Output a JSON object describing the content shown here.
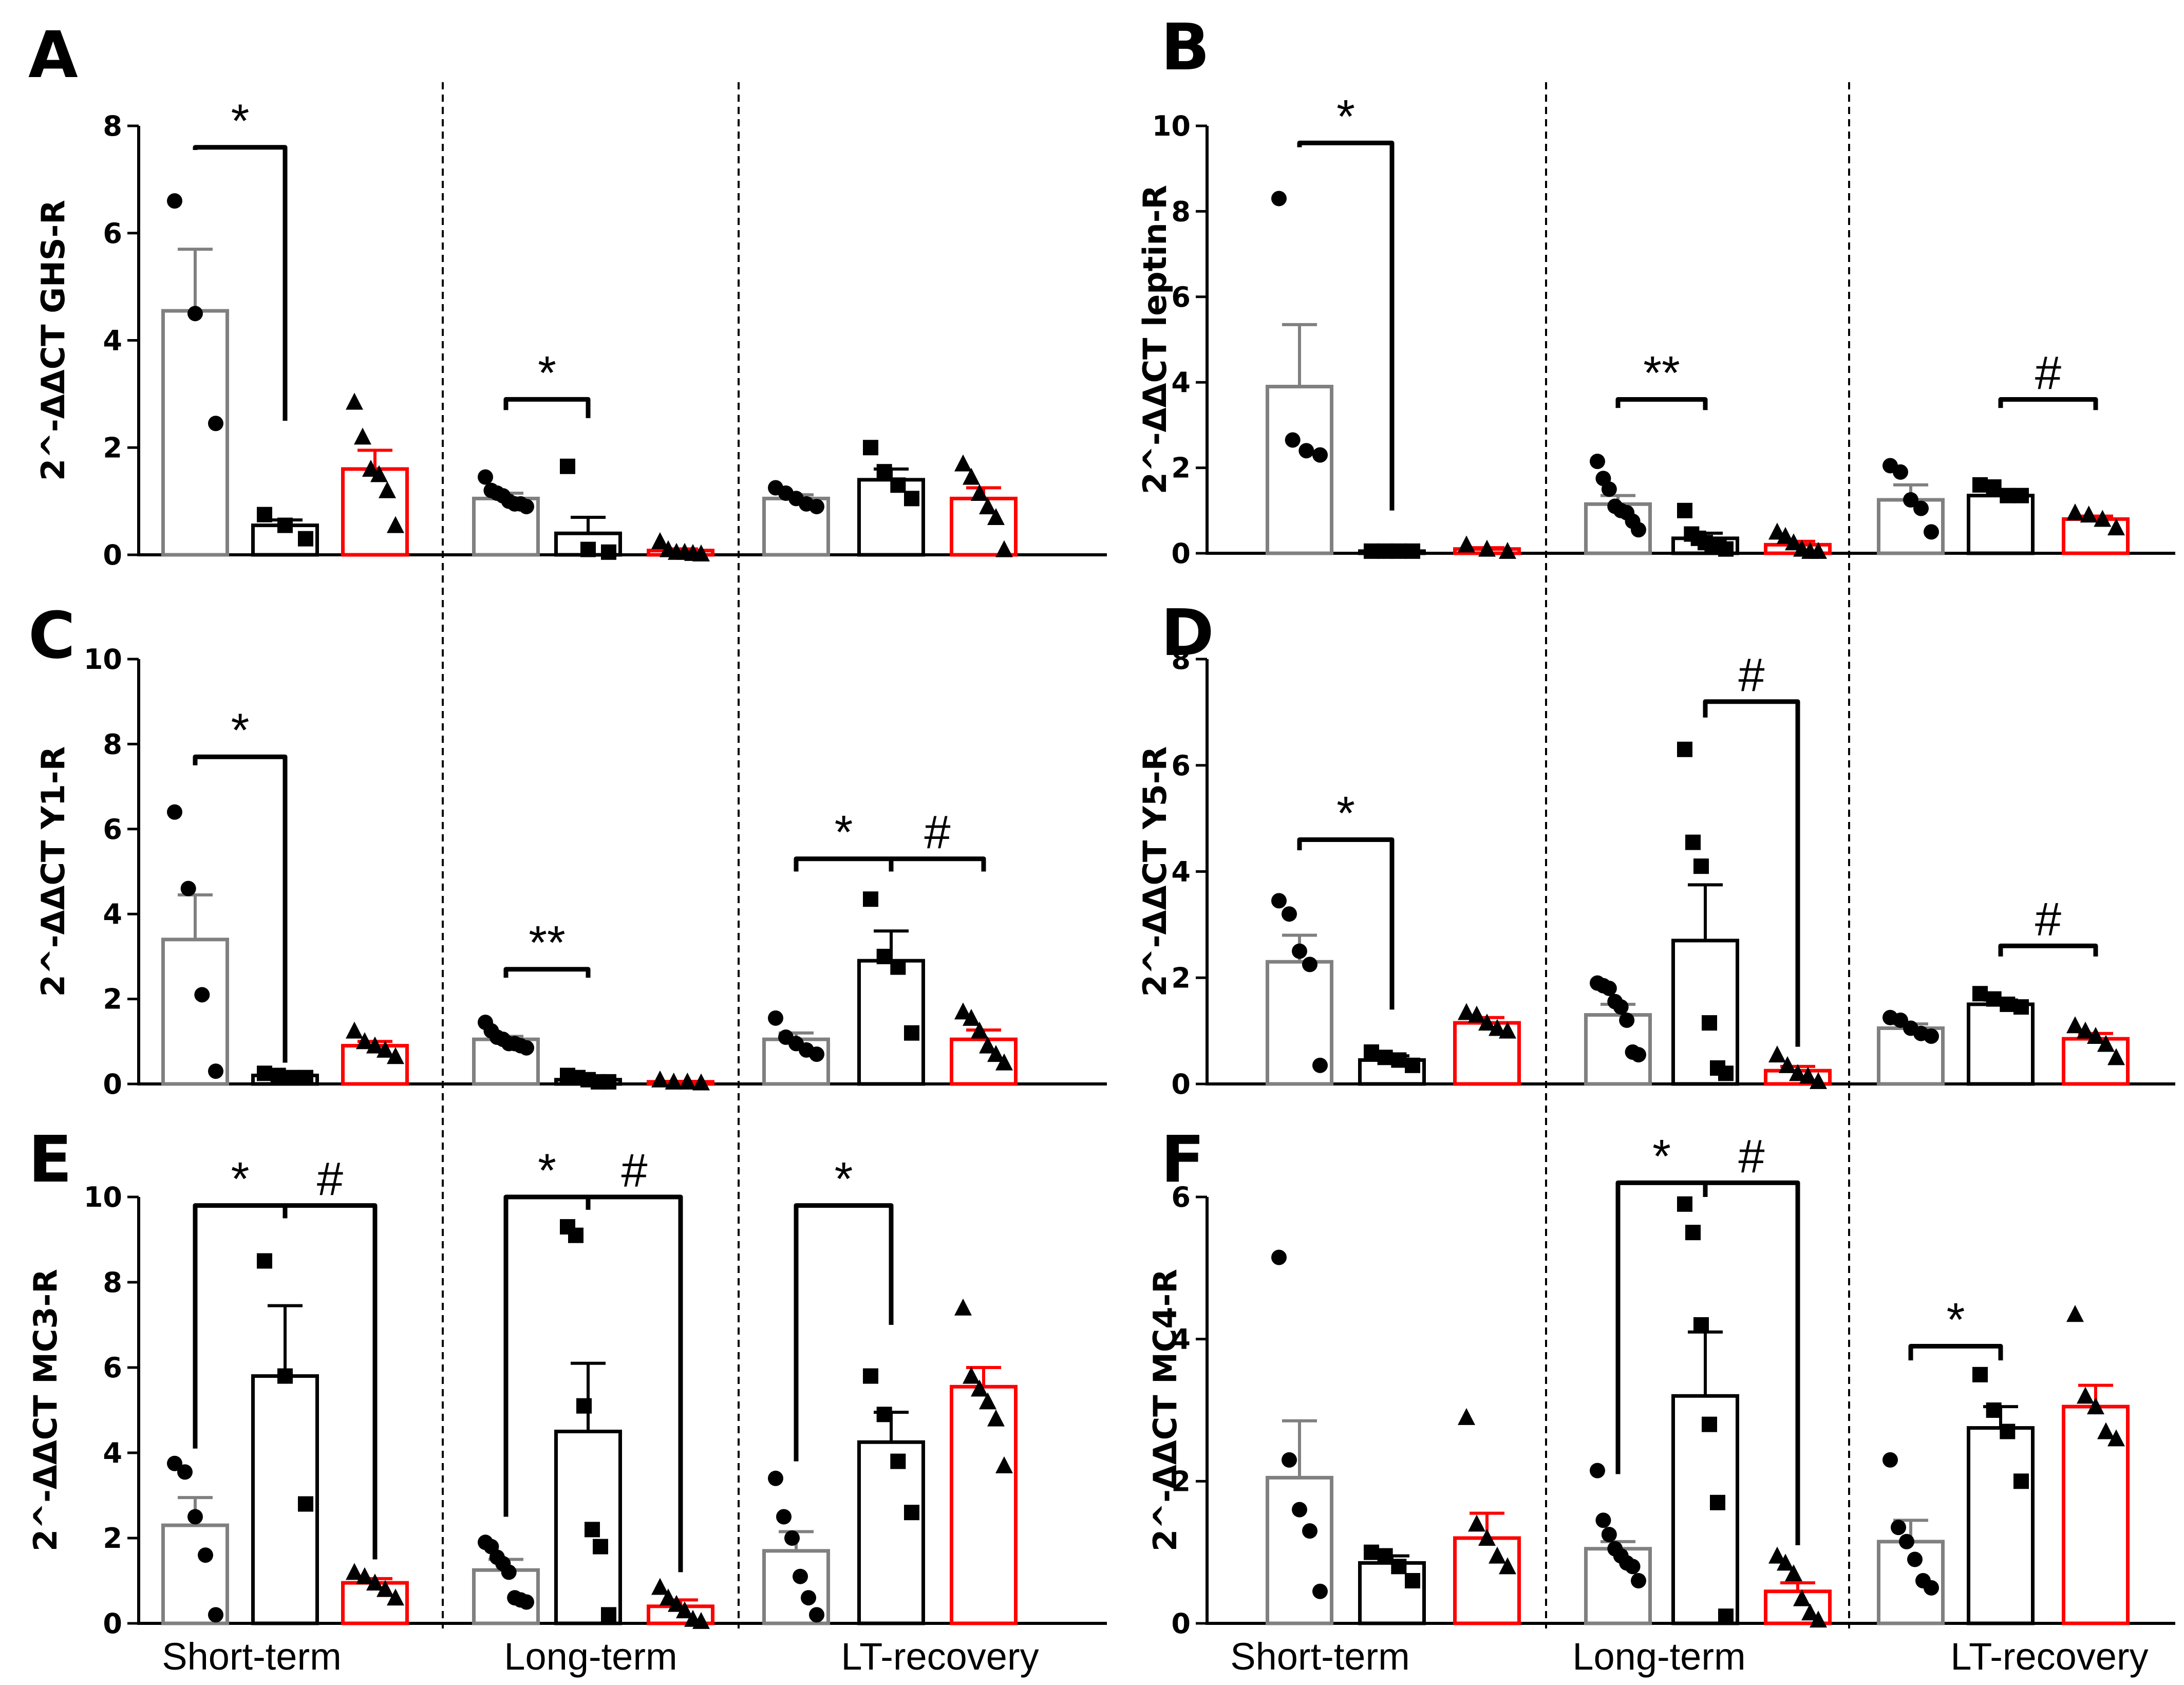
{
  "figure": {
    "x_categories": [
      "Short-term",
      "Long-term",
      "LT-recovery"
    ],
    "groups": [
      "Short-term",
      "Long-term",
      "LT-recovery"
    ],
    "series_colors": [
      "#808080",
      "#000000",
      "#ff0000"
    ],
    "marker_shapes": [
      "circle",
      "square",
      "triangle"
    ]
  },
  "chart_data": [
    {
      "panel": "A",
      "type": "bar",
      "ylabel": "2^-ΔΔCT GHS-R",
      "ylim": [
        0,
        8
      ],
      "yticks": [
        0,
        2,
        4,
        6,
        8
      ],
      "groups": [
        {
          "bars": [
            {
              "mean": 4.55,
              "sem": 1.15,
              "points": [
                6.6,
                4.5,
                2.45
              ]
            },
            {
              "mean": 0.55,
              "sem": 0.1,
              "points": [
                0.75,
                0.55,
                0.3
              ]
            },
            {
              "mean": 1.6,
              "sem": 0.35,
              "points": [
                2.85,
                2.2,
                1.6,
                1.5,
                1.2,
                0.55
              ]
            }
          ]
        },
        {
          "bars": [
            {
              "mean": 1.05,
              "sem": 0.1,
              "points": [
                1.45,
                1.2,
                1.15,
                1.1,
                1.0,
                0.95,
                0.95,
                0.9
              ]
            },
            {
              "mean": 0.4,
              "sem": 0.3,
              "points": [
                1.65,
                0.1,
                0.05
              ]
            },
            {
              "mean": 0.08,
              "sem": 0.03,
              "points": [
                0.25,
                0.1,
                0.05,
                0.05,
                0.03,
                0.02
              ]
            }
          ]
        },
        {
          "bars": [
            {
              "mean": 1.05,
              "sem": 0.07,
              "points": [
                1.25,
                1.15,
                1.05,
                0.95,
                0.9
              ]
            },
            {
              "mean": 1.4,
              "sem": 0.2,
              "points": [
                2.0,
                1.55,
                1.3,
                1.05
              ]
            },
            {
              "mean": 1.05,
              "sem": 0.2,
              "points": [
                1.7,
                1.45,
                1.15,
                0.9,
                0.7,
                0.1
              ]
            }
          ]
        }
      ],
      "annotations": [
        {
          "text": "*",
          "group": 0,
          "from": 0,
          "to": 1,
          "y": 7.6,
          "drop_to": [
            7.55,
            2.5
          ]
        },
        {
          "text": "*",
          "group": 1,
          "from": 0,
          "to": 1,
          "y": 2.9,
          "drop_to": [
            2.7,
            2.55
          ]
        }
      ]
    },
    {
      "panel": "B",
      "type": "bar",
      "ylabel": "2^-ΔΔCT leptin-R",
      "ylim": [
        0,
        10
      ],
      "yticks": [
        0,
        2,
        4,
        6,
        8,
        10
      ],
      "groups": [
        {
          "bars": [
            {
              "mean": 3.9,
              "sem": 1.45,
              "points": [
                8.3,
                2.65,
                2.4,
                2.3
              ]
            },
            {
              "mean": 0.05,
              "sem": 0.01,
              "points": [
                0.05,
                0.05,
                0.05,
                0.05
              ]
            },
            {
              "mean": 0.1,
              "sem": 0.03,
              "points": [
                0.2,
                0.1,
                0.05
              ]
            }
          ]
        },
        {
          "bars": [
            {
              "mean": 1.15,
              "sem": 0.2,
              "points": [
                2.15,
                1.75,
                1.5,
                1.1,
                1.0,
                0.95,
                0.75,
                0.55
              ]
            },
            {
              "mean": 0.35,
              "sem": 0.12,
              "points": [
                1.0,
                0.45,
                0.35,
                0.25,
                0.2,
                0.15,
                0.1
              ]
            },
            {
              "mean": 0.2,
              "sem": 0.08,
              "points": [
                0.5,
                0.4,
                0.25,
                0.1,
                0.05,
                0.05
              ]
            }
          ]
        },
        {
          "bars": [
            {
              "mean": 1.25,
              "sem": 0.35,
              "points": [
                2.05,
                1.9,
                1.25,
                1.05,
                0.5
              ]
            },
            {
              "mean": 1.35,
              "sem": 0.12,
              "points": [
                1.6,
                1.55,
                1.35,
                1.35
              ]
            },
            {
              "mean": 0.8,
              "sem": 0.07,
              "points": [
                0.95,
                0.9,
                0.8,
                0.6
              ]
            }
          ]
        }
      ],
      "annotations": [
        {
          "text": "*",
          "group": 0,
          "from": 0,
          "to": 1,
          "y": 9.6,
          "drop_to": [
            9.5,
            1.0
          ]
        },
        {
          "text": "**",
          "group": 1,
          "from": 0,
          "to": 1,
          "y": 3.6,
          "drop_to": [
            3.4,
            3.35
          ]
        },
        {
          "text": "#",
          "group": 2,
          "from": 1,
          "to": 2,
          "y": 3.6,
          "drop_to": [
            3.4,
            3.35
          ]
        }
      ]
    },
    {
      "panel": "C",
      "type": "bar",
      "ylabel": "2^-ΔΔCT Y1-R",
      "ylim": [
        0,
        10
      ],
      "yticks": [
        0,
        2,
        4,
        6,
        8,
        10
      ],
      "groups": [
        {
          "bars": [
            {
              "mean": 3.4,
              "sem": 1.05,
              "points": [
                6.4,
                4.6,
                2.1,
                0.3
              ]
            },
            {
              "mean": 0.2,
              "sem": 0.04,
              "points": [
                0.25,
                0.2,
                0.15,
                0.15
              ]
            },
            {
              "mean": 0.9,
              "sem": 0.1,
              "points": [
                1.25,
                1.0,
                0.9,
                0.8,
                0.65
              ]
            }
          ]
        },
        {
          "bars": [
            {
              "mean": 1.05,
              "sem": 0.07,
              "points": [
                1.45,
                1.25,
                1.1,
                1.05,
                0.95,
                0.95,
                0.9,
                0.85
              ]
            },
            {
              "mean": 0.1,
              "sem": 0.02,
              "points": [
                0.2,
                0.15,
                0.1,
                0.05,
                0.05
              ]
            },
            {
              "mean": 0.05,
              "sem": 0.01,
              "points": [
                0.1,
                0.05,
                0.05,
                0.03
              ]
            }
          ]
        },
        {
          "bars": [
            {
              "mean": 1.05,
              "sem": 0.15,
              "points": [
                1.55,
                1.1,
                0.95,
                0.8,
                0.7
              ]
            },
            {
              "mean": 2.9,
              "sem": 0.7,
              "points": [
                4.35,
                3.0,
                2.75,
                1.2
              ]
            },
            {
              "mean": 1.05,
              "sem": 0.22,
              "points": [
                1.7,
                1.55,
                1.25,
                0.9,
                0.7,
                0.5
              ]
            }
          ]
        }
      ],
      "annotations": [
        {
          "text": "*",
          "group": 0,
          "from": 0,
          "to": 1,
          "y": 7.7,
          "drop_to": [
            7.5,
            0.5
          ]
        },
        {
          "text": "**",
          "group": 1,
          "from": 0,
          "to": 1,
          "y": 2.7,
          "drop_to": [
            2.5,
            2.5
          ]
        },
        {
          "text": "*",
          "group": 2,
          "from": 0,
          "to": 1,
          "y": 5.3,
          "drop_to": [
            5.0,
            5.0
          ]
        },
        {
          "text": "#",
          "group": 2,
          "from": 1,
          "to": 2,
          "y": 5.3,
          "drop_to": [
            5.0,
            5.0
          ]
        }
      ]
    },
    {
      "panel": "D",
      "type": "bar",
      "ylabel": "2^-ΔΔCT Y5-R",
      "ylim": [
        0,
        8
      ],
      "yticks": [
        0,
        2,
        4,
        6,
        8
      ],
      "groups": [
        {
          "bars": [
            {
              "mean": 2.3,
              "sem": 0.5,
              "points": [
                3.45,
                3.2,
                2.5,
                2.25,
                0.35
              ]
            },
            {
              "mean": 0.45,
              "sem": 0.08,
              "points": [
                0.6,
                0.5,
                0.45,
                0.35
              ]
            },
            {
              "mean": 1.15,
              "sem": 0.1,
              "points": [
                1.35,
                1.3,
                1.15,
                1.05,
                1.0
              ]
            }
          ]
        },
        {
          "bars": [
            {
              "mean": 1.3,
              "sem": 0.2,
              "points": [
                1.9,
                1.85,
                1.8,
                1.55,
                1.45,
                1.2,
                0.6,
                0.55
              ]
            },
            {
              "mean": 2.7,
              "sem": 1.05,
              "points": [
                6.3,
                4.55,
                4.1,
                1.15,
                0.3,
                0.2
              ]
            },
            {
              "mean": 0.25,
              "sem": 0.08,
              "points": [
                0.55,
                0.35,
                0.2,
                0.15,
                0.05
              ]
            }
          ]
        },
        {
          "bars": [
            {
              "mean": 1.05,
              "sem": 0.08,
              "points": [
                1.25,
                1.2,
                1.05,
                0.95,
                0.9
              ]
            },
            {
              "mean": 1.5,
              "sem": 0.08,
              "points": [
                1.7,
                1.6,
                1.5,
                1.45
              ]
            },
            {
              "mean": 0.85,
              "sem": 0.1,
              "points": [
                1.1,
                1.0,
                0.9,
                0.75,
                0.5
              ]
            }
          ]
        }
      ],
      "annotations": [
        {
          "text": "*",
          "group": 0,
          "from": 0,
          "to": 1,
          "y": 4.6,
          "drop_to": [
            4.4,
            1.4
          ]
        },
        {
          "text": "#",
          "group": 1,
          "from": 1,
          "to": 2,
          "y": 7.2,
          "drop_to": [
            6.9,
            0.7
          ]
        },
        {
          "text": "#",
          "group": 2,
          "from": 1,
          "to": 2,
          "y": 2.6,
          "drop_to": [
            2.4,
            2.4
          ]
        }
      ]
    },
    {
      "panel": "E",
      "type": "bar",
      "ylabel": "2^-ΔΔCT MC3-R",
      "ylim": [
        0,
        10
      ],
      "yticks": [
        0,
        2,
        4,
        6,
        8,
        10
      ],
      "groups": [
        {
          "bars": [
            {
              "mean": 2.3,
              "sem": 0.65,
              "points": [
                3.75,
                3.55,
                2.5,
                1.6,
                0.2
              ]
            },
            {
              "mean": 5.8,
              "sem": 1.65,
              "points": [
                8.5,
                5.8,
                2.8
              ]
            },
            {
              "mean": 0.95,
              "sem": 0.1,
              "points": [
                1.2,
                1.1,
                0.95,
                0.8,
                0.6
              ]
            }
          ]
        },
        {
          "bars": [
            {
              "mean": 1.25,
              "sem": 0.25,
              "points": [
                1.9,
                1.8,
                1.55,
                1.4,
                1.2,
                0.6,
                0.55,
                0.5
              ]
            },
            {
              "mean": 4.5,
              "sem": 1.6,
              "points": [
                9.3,
                9.1,
                5.1,
                2.2,
                1.8,
                0.2
              ]
            },
            {
              "mean": 0.4,
              "sem": 0.15,
              "points": [
                0.85,
                0.6,
                0.45,
                0.3,
                0.1,
                0.05
              ]
            }
          ]
        },
        {
          "bars": [
            {
              "mean": 1.7,
              "sem": 0.45,
              "points": [
                3.4,
                2.5,
                2.0,
                1.1,
                0.6,
                0.2
              ]
            },
            {
              "mean": 4.25,
              "sem": 0.7,
              "points": [
                5.8,
                4.9,
                3.8,
                2.6
              ]
            },
            {
              "mean": 5.55,
              "sem": 0.45,
              "points": [
                7.4,
                5.8,
                5.5,
                5.2,
                4.8,
                3.7
              ]
            }
          ]
        }
      ],
      "annotations": [
        {
          "text": "*",
          "group": 0,
          "from": 0,
          "to": 1,
          "y": 9.8,
          "drop_to": [
            4.1,
            9.5
          ]
        },
        {
          "text": "#",
          "group": 0,
          "from": 1,
          "to": 2,
          "y": 9.8,
          "drop_to": [
            9.5,
            1.5
          ]
        },
        {
          "text": "*",
          "group": 1,
          "from": 0,
          "to": 1,
          "y": 10.0,
          "drop_to": [
            2.5,
            9.7
          ]
        },
        {
          "text": "#",
          "group": 1,
          "from": 1,
          "to": 2,
          "y": 10.0,
          "drop_to": [
            9.7,
            1.2
          ]
        },
        {
          "text": "*",
          "group": 2,
          "from": 0,
          "to": 1,
          "y": 9.8,
          "drop_to": [
            3.8,
            7.0
          ]
        }
      ]
    },
    {
      "panel": "F",
      "type": "bar",
      "ylabel": "2^-ΔΔCT MC4-R",
      "ylim": [
        0,
        6
      ],
      "yticks": [
        0,
        2,
        4,
        6
      ],
      "groups": [
        {
          "bars": [
            {
              "mean": 2.05,
              "sem": 0.8,
              "points": [
                5.15,
                2.3,
                1.6,
                1.3,
                0.45
              ]
            },
            {
              "mean": 0.85,
              "sem": 0.1,
              "points": [
                1.0,
                0.95,
                0.8,
                0.6
              ]
            },
            {
              "mean": 1.2,
              "sem": 0.35,
              "points": [
                2.9,
                1.4,
                1.2,
                0.95,
                0.8
              ]
            }
          ]
        },
        {
          "bars": [
            {
              "mean": 1.05,
              "sem": 0.1,
              "points": [
                2.15,
                1.45,
                1.25,
                1.05,
                0.95,
                0.85,
                0.8,
                0.6
              ]
            },
            {
              "mean": 3.2,
              "sem": 0.9,
              "points": [
                5.9,
                5.5,
                4.2,
                2.8,
                1.7,
                0.1
              ]
            },
            {
              "mean": 0.45,
              "sem": 0.12,
              "points": [
                0.95,
                0.85,
                0.7,
                0.35,
                0.15,
                0.05
              ]
            }
          ]
        },
        {
          "bars": [
            {
              "mean": 1.15,
              "sem": 0.3,
              "points": [
                2.3,
                1.35,
                1.15,
                0.9,
                0.6,
                0.5
              ]
            },
            {
              "mean": 2.75,
              "sem": 0.3,
              "points": [
                3.5,
                3.0,
                2.7,
                2.0
              ]
            },
            {
              "mean": 3.05,
              "sem": 0.3,
              "points": [
                4.35,
                3.2,
                3.05,
                2.7,
                2.6
              ]
            }
          ]
        }
      ],
      "annotations": [
        {
          "text": "*",
          "group": 1,
          "from": 0,
          "to": 1,
          "y": 6.2,
          "drop_to": [
            2.1,
            6.0
          ]
        },
        {
          "text": "#",
          "group": 1,
          "from": 1,
          "to": 2,
          "y": 6.2,
          "drop_to": [
            6.0,
            1.1
          ]
        },
        {
          "text": "*",
          "group": 2,
          "from": 0,
          "to": 1,
          "y": 3.9,
          "drop_to": [
            3.7,
            3.7
          ]
        }
      ]
    }
  ]
}
